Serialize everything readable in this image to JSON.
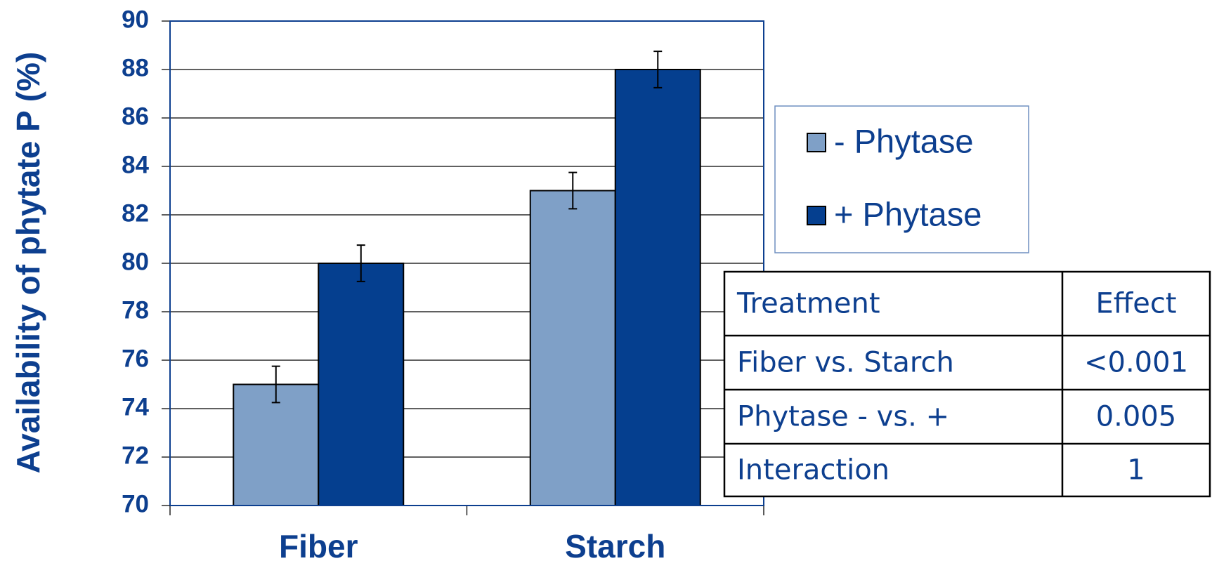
{
  "chart_data": {
    "type": "bar",
    "ylabel": "Availability of phytate P (%)",
    "categories": [
      "Fiber",
      "Starch"
    ],
    "series": [
      {
        "name": "- Phytase",
        "color": "#7fa0c7",
        "values": [
          75,
          83
        ],
        "errors": [
          0.75,
          0.75
        ]
      },
      {
        "name": "+ Phytase",
        "color": "#053f8f",
        "values": [
          80,
          88
        ],
        "errors": [
          0.75,
          0.75
        ]
      }
    ],
    "ylim": [
      70,
      90
    ],
    "yticks": [
      70,
      72,
      74,
      76,
      78,
      80,
      82,
      84,
      86,
      88,
      90
    ],
    "grid": true
  },
  "table": {
    "header": [
      "Treatment",
      "Effect"
    ],
    "rows": [
      [
        "Fiber vs. Starch",
        "<0.001"
      ],
      [
        "Phytase - vs. +",
        "0.005"
      ],
      [
        "Interaction",
        "1"
      ]
    ]
  }
}
